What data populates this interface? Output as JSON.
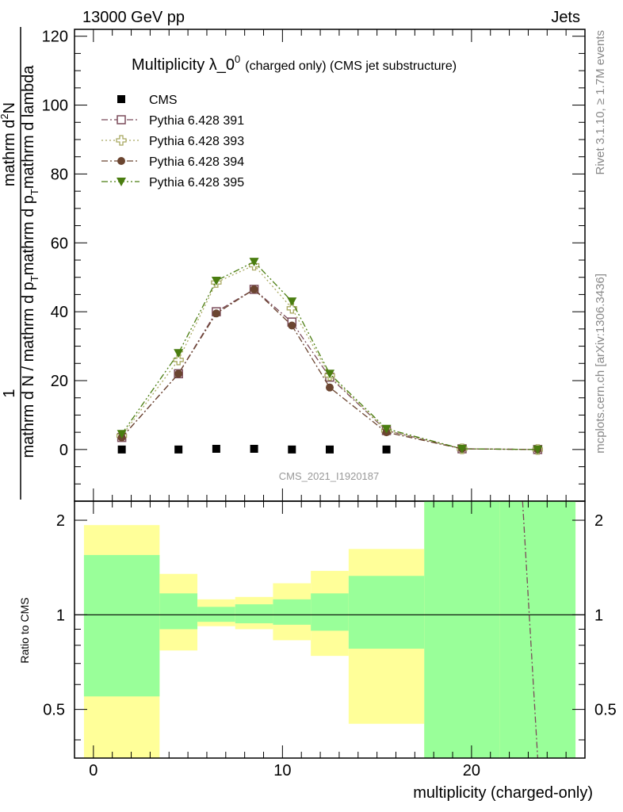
{
  "header": {
    "energy": "13000 GeV pp",
    "category": "Jets"
  },
  "side": {
    "rivet": "Rivet 3.1.10, ≥ 1.7M events",
    "mcplots": "mcplots.cern.ch [arXiv:1306.3436]"
  },
  "watermark": "CMS_2021_I1920187",
  "colors": {
    "cms": "#000000",
    "p391": "#7b4b5a",
    "p393": "#a8a860",
    "p394": "#6b4530",
    "p395": "#4a7d10",
    "band_inner": "#99ff99",
    "band_outer": "#ffff99"
  },
  "chart_data": [
    {
      "type": "line",
      "title_main": "Multiplicity λ_0",
      "title_sup": "0",
      "title_sub": "(charged only) (CMS jet substructure)",
      "ylabel_num": "1",
      "ylabel_den1": "mathrm d N / mathrm d p",
      "ylabel_den2": "mathrm d p",
      "ylabel_den3": "mathrm d lambda",
      "ylabel_sub": "T",
      "ylabel_num2": "mathrm d",
      "ylabel_sup": "2",
      "ylabel_num3": "N",
      "ylim": [
        -15,
        122
      ],
      "xlim": [
        -1,
        26
      ],
      "yticks": [
        0,
        20,
        40,
        60,
        80,
        100,
        120
      ],
      "legend": {
        "placement": "top-left",
        "entries": [
          "CMS",
          "Pythia 6.428 391",
          "Pythia 6.428 393",
          "Pythia 6.428 394",
          "Pythia 6.428 395"
        ]
      },
      "series": [
        {
          "name": "CMS",
          "marker": "square-filled",
          "x": [
            1.5,
            4.5,
            6.5,
            8.5,
            10.5,
            12.5,
            15.5
          ],
          "y": [
            0,
            0,
            0.2,
            0.2,
            0,
            0,
            0
          ]
        },
        {
          "name": "Pythia 6.428 391",
          "marker": "square-open",
          "x": [
            1.5,
            4.5,
            6.5,
            8.5,
            10.5,
            12.5,
            15.5,
            19.5,
            23.5
          ],
          "y": [
            3.5,
            22,
            40,
            46.5,
            37,
            21,
            5.5,
            0.2,
            0
          ]
        },
        {
          "name": "Pythia 6.428 393",
          "marker": "cross-open",
          "x": [
            1.5,
            4.5,
            6.5,
            8.5,
            10.5,
            12.5,
            15.5,
            19.5,
            23.5
          ],
          "y": [
            4,
            26,
            48.5,
            53.5,
            41,
            21.5,
            5.5,
            0.2,
            0
          ]
        },
        {
          "name": "Pythia 6.428 394",
          "marker": "circle-filled",
          "x": [
            1.5,
            4.5,
            6.5,
            8.5,
            10.5,
            12.5,
            15.5,
            19.5,
            23.5
          ],
          "y": [
            3.5,
            22,
            39.5,
            46.5,
            36,
            18,
            5,
            0.2,
            0
          ]
        },
        {
          "name": "Pythia 6.428 395",
          "marker": "triangle-down-filled",
          "x": [
            1.5,
            4.5,
            6.5,
            8.5,
            10.5,
            12.5,
            15.5,
            19.5,
            23.5
          ],
          "y": [
            4.5,
            28,
            49,
            54.5,
            43,
            22,
            6,
            0.2,
            0
          ]
        }
      ]
    },
    {
      "type": "area",
      "ylabel": "Ratio to CMS",
      "xlabel": "multiplicity (charged-only)",
      "xlim": [
        -1,
        26
      ],
      "ylim": [
        0.35,
        2.3
      ],
      "yticks": [
        0.5,
        1,
        2
      ],
      "yticklabels": [
        "0.5",
        "1",
        "2"
      ],
      "xticks": [
        0,
        10,
        20
      ],
      "xticklabels": [
        "0",
        "10",
        "20"
      ],
      "bins": [
        {
          "x0": -0.5,
          "x1": 3.5,
          "inner": [
            0.55,
            1.55
          ],
          "outer": [
            0.35,
            1.93
          ]
        },
        {
          "x0": 3.5,
          "x1": 5.5,
          "inner": [
            0.9,
            1.17
          ],
          "outer": [
            0.77,
            1.35
          ]
        },
        {
          "x0": 5.5,
          "x1": 7.5,
          "inner": [
            0.95,
            1.06
          ],
          "outer": [
            0.92,
            1.12
          ]
        },
        {
          "x0": 7.5,
          "x1": 9.5,
          "inner": [
            0.94,
            1.08
          ],
          "outer": [
            0.9,
            1.14
          ]
        },
        {
          "x0": 9.5,
          "x1": 11.5,
          "inner": [
            0.93,
            1.12
          ],
          "outer": [
            0.83,
            1.26
          ]
        },
        {
          "x0": 11.5,
          "x1": 13.5,
          "inner": [
            0.89,
            1.17
          ],
          "outer": [
            0.74,
            1.38
          ]
        },
        {
          "x0": 13.5,
          "x1": 17.5,
          "inner": [
            0.78,
            1.33
          ],
          "outer": [
            0.45,
            1.62
          ]
        },
        {
          "x0": 17.5,
          "x1": 21.5,
          "inner": [
            0.35,
            2.3
          ],
          "outer": [
            0.35,
            2.3
          ]
        },
        {
          "x0": 21.5,
          "x1": 25.5,
          "inner": [
            0.35,
            2.3
          ],
          "outer": [
            0.35,
            2.3
          ]
        }
      ],
      "ratio_curve": {
        "x": [
          22.7,
          23.5
        ],
        "y": [
          2.3,
          0.35
        ]
      }
    }
  ]
}
